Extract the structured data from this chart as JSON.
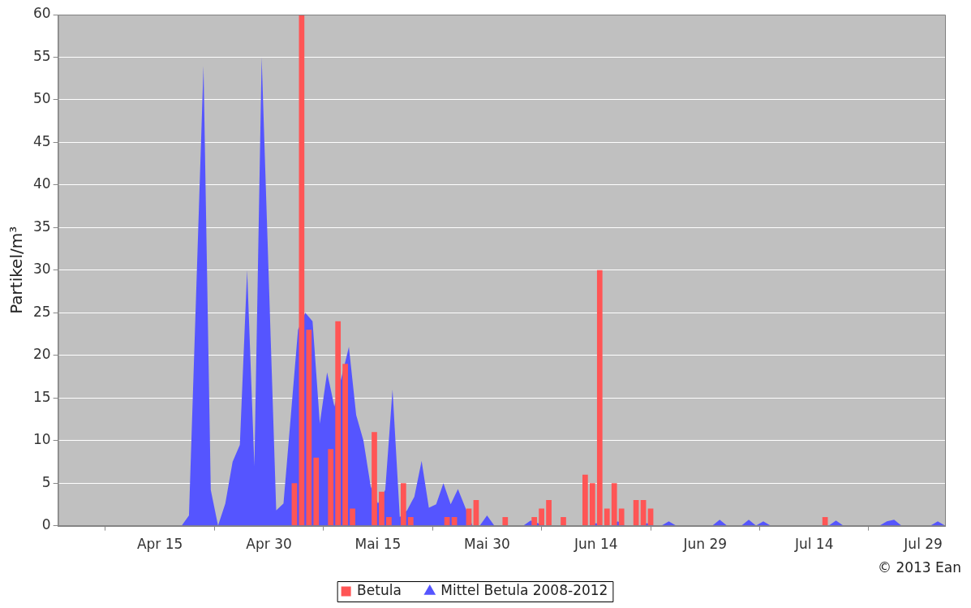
{
  "chart_data": {
    "type": "bar",
    "ylabel": "Partikel/m³",
    "xlim": [
      "2013-04-01",
      "2013-08-01"
    ],
    "xticks": [
      {
        "value": "2013-04-15",
        "label": "Apr 15"
      },
      {
        "value": "2013-04-30",
        "label": "Apr 30"
      },
      {
        "value": "2013-05-15",
        "label": "Mai 15"
      },
      {
        "value": "2013-05-30",
        "label": "Mai 30"
      },
      {
        "value": "2013-06-14",
        "label": "Jun 14"
      },
      {
        "value": "2013-06-29",
        "label": "Jun 29"
      },
      {
        "value": "2013-07-14",
        "label": "Jul 14"
      },
      {
        "value": "2013-07-29",
        "label": "Jul 29"
      }
    ],
    "ylim": [
      0,
      60
    ],
    "yticks": [
      0,
      5,
      10,
      15,
      20,
      25,
      30,
      35,
      40,
      45,
      50,
      55,
      60
    ],
    "grid": "y",
    "legend": "bottom",
    "annotations": [
      "© 2013 Ean"
    ],
    "series": [
      {
        "name": "Betula",
        "color": "#ff5555",
        "x": [
          "2013-05-03T12:00",
          "2013-05-04T12:00",
          "2013-05-05T12:00",
          "2013-05-06T12:00",
          "2013-05-08T12:00",
          "2013-05-09T12:00",
          "2013-05-10T12:00",
          "2013-05-11T12:00",
          "2013-05-14T12:00",
          "2013-05-15T12:00",
          "2013-05-16T12:00",
          "2013-05-18T12:00",
          "2013-05-19T12:00",
          "2013-05-24T12:00",
          "2013-05-25T12:00",
          "2013-05-27T12:00",
          "2013-05-28T12:00",
          "2013-06-01T12:00",
          "2013-06-05T12:00",
          "2013-06-06T12:00",
          "2013-06-07T12:00",
          "2013-06-09T12:00",
          "2013-06-12T12:00",
          "2013-06-13T12:00",
          "2013-06-14T12:00",
          "2013-06-15T12:00",
          "2013-06-16T12:00",
          "2013-06-17T12:00",
          "2013-06-19T12:00",
          "2013-06-20T12:00",
          "2013-06-21T12:00",
          "2013-07-15T12:00"
        ],
        "values": [
          5,
          60,
          23,
          8,
          9,
          24,
          19,
          2,
          11,
          4,
          1,
          5,
          1,
          1,
          1,
          2,
          3,
          1,
          1,
          2,
          3,
          1,
          6,
          5,
          30,
          2,
          5,
          2,
          3,
          3,
          2,
          1
        ]
      },
      {
        "name": "Mittel Betula 2008-2012",
        "type": "area",
        "color": "#5555ff",
        "x": [
          "2013-04-01",
          "2013-04-18",
          "2013-04-19",
          "2013-04-21",
          "2013-04-22",
          "2013-04-23",
          "2013-04-24",
          "2013-04-25",
          "2013-04-26",
          "2013-04-27",
          "2013-04-28",
          "2013-04-29",
          "2013-05-01",
          "2013-05-02",
          "2013-05-04",
          "2013-05-05",
          "2013-05-06",
          "2013-05-07",
          "2013-05-08",
          "2013-05-09",
          "2013-05-11",
          "2013-05-12",
          "2013-05-13",
          "2013-05-14",
          "2013-05-15",
          "2013-05-16",
          "2013-05-17",
          "2013-05-18",
          "2013-05-19",
          "2013-05-20",
          "2013-05-21",
          "2013-05-22",
          "2013-05-23",
          "2013-05-24",
          "2013-05-25",
          "2013-05-26",
          "2013-05-28",
          "2013-05-29",
          "2013-05-30",
          "2013-05-31",
          "2013-06-04",
          "2013-06-05",
          "2013-06-06",
          "2013-06-07",
          "2013-06-13",
          "2013-06-14",
          "2013-06-15",
          "2013-06-16",
          "2013-06-17",
          "2013-06-18",
          "2013-06-20",
          "2013-06-21",
          "2013-06-22",
          "2013-06-23",
          "2013-06-24",
          "2013-06-25",
          "2013-06-30",
          "2013-07-01",
          "2013-07-02",
          "2013-07-04",
          "2013-07-05",
          "2013-07-06",
          "2013-07-07",
          "2013-07-08",
          "2013-07-16",
          "2013-07-17",
          "2013-07-18",
          "2013-07-23",
          "2013-07-24",
          "2013-07-25",
          "2013-07-26",
          "2013-07-30",
          "2013-07-31",
          "2013-08-01"
        ],
        "values": [
          0,
          0,
          1.2,
          54,
          4.2,
          0,
          2.6,
          7.5,
          9.5,
          30,
          7,
          55,
          1.8,
          2.6,
          23,
          25,
          24,
          12,
          18,
          14,
          21,
          13,
          10,
          4.6,
          2.6,
          4.2,
          16,
          1,
          1.8,
          3.4,
          7.6,
          2.1,
          2.5,
          5,
          2.5,
          4.3,
          0,
          0,
          1.2,
          0,
          0,
          0.6,
          0.3,
          0,
          0,
          0.3,
          0,
          0,
          0.5,
          0,
          0,
          0.3,
          0,
          0,
          0.5,
          0,
          0,
          0.7,
          0,
          0,
          0.7,
          0,
          0.5,
          0,
          0,
          0.6,
          0,
          0,
          0.5,
          0.7,
          0,
          0,
          0.5,
          0
        ]
      }
    ]
  }
}
